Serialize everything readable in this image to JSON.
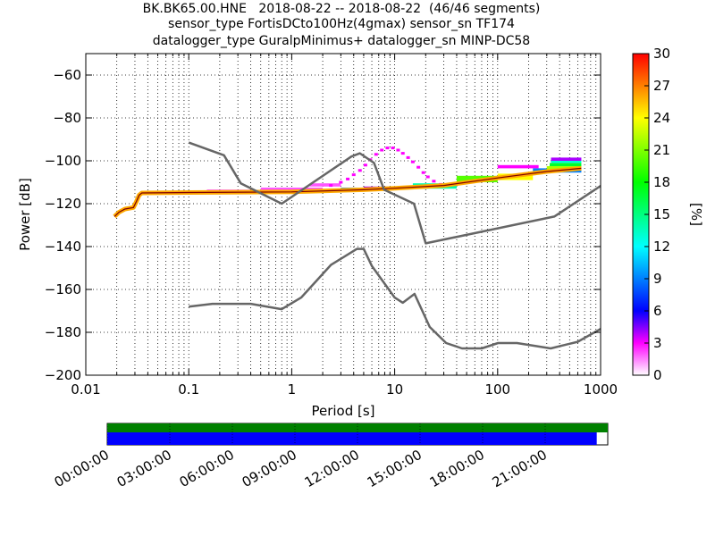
{
  "chart_data": {
    "type": "heatmap",
    "title_lines": [
      "BK.BK65.00.HNE   2018-08-22 -- 2018-08-22  (46/46 segments)",
      "sensor_type FortisDCto100Hz(4gmax) sensor_sn TF174",
      "datalogger_type GuralpMinimus+ datalogger_sn MINP-DC58"
    ],
    "xlabel": "Period [s]",
    "ylabel": "Power [dB]",
    "x_scale": "log",
    "xlim": [
      0.01,
      1000
    ],
    "ylim": [
      -200,
      -50
    ],
    "x_ticks": [
      {
        "value": 0.01,
        "label": "0.01"
      },
      {
        "value": 0.1,
        "label": "0.1"
      },
      {
        "value": 1,
        "label": "1"
      },
      {
        "value": 10,
        "label": "10"
      },
      {
        "value": 100,
        "label": "100"
      },
      {
        "value": 1000,
        "label": "1000"
      }
    ],
    "y_ticks": [
      {
        "value": -60,
        "label": "−60"
      },
      {
        "value": -80,
        "label": "−80"
      },
      {
        "value": -100,
        "label": "−100"
      },
      {
        "value": -120,
        "label": "−120"
      },
      {
        "value": -140,
        "label": "−140"
      },
      {
        "value": -160,
        "label": "−160"
      },
      {
        "value": -180,
        "label": "−180"
      },
      {
        "value": -200,
        "label": "−200"
      }
    ],
    "grid": true,
    "colorbar": {
      "label": "[%]",
      "range": [
        0,
        30
      ],
      "ticks": [
        {
          "value": 0,
          "label": "0"
        },
        {
          "value": 3,
          "label": "3"
        },
        {
          "value": 6,
          "label": "6"
        },
        {
          "value": 9,
          "label": "9"
        },
        {
          "value": 12,
          "label": "12"
        },
        {
          "value": 15,
          "label": "15"
        },
        {
          "value": 18,
          "label": "18"
        },
        {
          "value": 21,
          "label": "21"
        },
        {
          "value": 24,
          "label": "24"
        },
        {
          "value": 27,
          "label": "27"
        },
        {
          "value": 30,
          "label": "30"
        }
      ]
    },
    "noise_model_high": [
      [
        0.1,
        -91.5
      ],
      [
        0.22,
        -97.4
      ],
      [
        0.32,
        -110.5
      ],
      [
        0.8,
        -120
      ],
      [
        3.8,
        -98
      ],
      [
        4.6,
        -96.5
      ],
      [
        6.3,
        -101
      ],
      [
        7.9,
        -113.5
      ],
      [
        15.4,
        -120
      ],
      [
        20,
        -138.5
      ],
      [
        354.8,
        -126
      ],
      [
        10000,
        -80
      ]
    ],
    "noise_model_low": [
      [
        0.1,
        -168
      ],
      [
        0.17,
        -166.7
      ],
      [
        0.4,
        -166.7
      ],
      [
        0.8,
        -169.2
      ],
      [
        1.24,
        -163.7
      ],
      [
        2.4,
        -148.6
      ],
      [
        4.3,
        -141.1
      ],
      [
        5,
        -141.1
      ],
      [
        6,
        -149
      ],
      [
        10,
        -163.8
      ],
      [
        12,
        -166.2
      ],
      [
        15.6,
        -162.1
      ],
      [
        21.9,
        -177.5
      ],
      [
        31.6,
        -185
      ],
      [
        45,
        -187.5
      ],
      [
        70,
        -187.5
      ],
      [
        101,
        -185
      ],
      [
        154,
        -185
      ],
      [
        328,
        -187.5
      ],
      [
        600,
        -184.4
      ],
      [
        10000,
        -151.5
      ]
    ],
    "psd_mode": [
      [
        0.019,
        -126
      ],
      [
        0.021,
        -124
      ],
      [
        0.024,
        -122.5
      ],
      [
        0.029,
        -121.8
      ],
      [
        0.031,
        -119
      ],
      [
        0.033,
        -116
      ],
      [
        0.035,
        -115
      ],
      [
        0.1,
        -114.8
      ],
      [
        1,
        -114.5
      ],
      [
        5,
        -113.5
      ],
      [
        10,
        -112.8
      ],
      [
        30,
        -111.5
      ],
      [
        100,
        -108
      ],
      [
        300,
        -105
      ],
      [
        650,
        -103.5
      ]
    ],
    "psd_bands": [
      {
        "x0": 0.15,
        "x1": 0.4,
        "y0": -114.5,
        "y1": -113.5,
        "pct": 3
      },
      {
        "x0": 0.5,
        "x1": 2,
        "y0": -114,
        "y1": -112.5,
        "pct": 2
      },
      {
        "x0": 1.5,
        "x1": 3,
        "y0": -112,
        "y1": -110.5,
        "pct": 2
      },
      {
        "x0": 3,
        "x1": 5,
        "y0": -114,
        "y1": -112.5,
        "pct": 9
      },
      {
        "x0": 5,
        "x1": 10,
        "y0": -113.5,
        "y1": -112,
        "pct": 4
      },
      {
        "x0": 15,
        "x1": 40,
        "y0": -113,
        "y1": -110.5,
        "pct": 14
      },
      {
        "x0": 40,
        "x1": 100,
        "y0": -110,
        "y1": -107,
        "pct": 20
      },
      {
        "x0": 100,
        "x1": 220,
        "y0": -109,
        "y1": -106,
        "pct": 24
      },
      {
        "x0": 220,
        "x1": 650,
        "y0": -105.5,
        "y1": -103.5,
        "pct": 9
      },
      {
        "x0": 300,
        "x1": 650,
        "y0": -104,
        "y1": -102.5,
        "pct": 22
      },
      {
        "x0": 320,
        "x1": 650,
        "y0": -102.5,
        "y1": -101,
        "pct": 17
      },
      {
        "x0": 330,
        "x1": 650,
        "y0": -101,
        "y1": -99.5,
        "pct": 13
      },
      {
        "x0": 330,
        "x1": 650,
        "y0": -100,
        "y1": -98.5,
        "pct": 4
      },
      {
        "x0": 100,
        "x1": 250,
        "y0": -103.5,
        "y1": -102,
        "pct": 3
      }
    ],
    "psd_bump": [
      [
        2.4,
        -111.5
      ],
      [
        3,
        -110
      ],
      [
        3.5,
        -108.5
      ],
      [
        4,
        -106.5
      ],
      [
        4.6,
        -104.5
      ],
      [
        5.2,
        -102
      ],
      [
        5.8,
        -99.5
      ],
      [
        6.6,
        -97
      ],
      [
        7.5,
        -95
      ],
      [
        8.5,
        -94
      ],
      [
        9.6,
        -94
      ],
      [
        10.8,
        -95
      ],
      [
        12,
        -96.5
      ],
      [
        13.5,
        -98.5
      ],
      [
        15,
        -100.5
      ],
      [
        17,
        -103
      ],
      [
        19,
        -105.5
      ],
      [
        21,
        -107.5
      ],
      [
        24,
        -109.5
      ],
      [
        28,
        -111
      ]
    ],
    "timeline": {
      "tick_labels": [
        "00:00:00",
        "03:00:00",
        "06:00:00",
        "09:00:00",
        "12:00:00",
        "15:00:00",
        "18:00:00",
        "21:00:00"
      ],
      "data_coverage_fraction": 1.0,
      "segment_coverage_fraction": 0.978,
      "colors": {
        "data": "#008000",
        "segments": "#0000ff"
      }
    }
  }
}
